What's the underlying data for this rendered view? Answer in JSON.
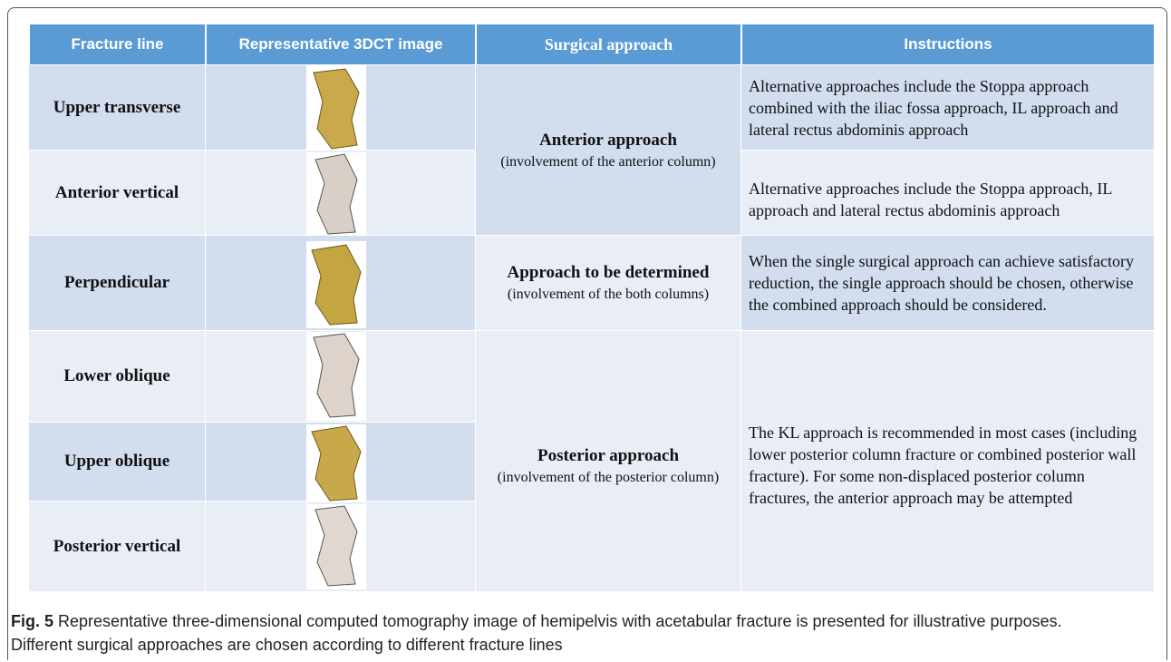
{
  "table": {
    "header": [
      "Fracture line",
      "Representative 3DCT image",
      "Surgical approach",
      "Instructions"
    ],
    "fracture_lines": [
      "Upper transverse",
      "Anterior vertical",
      "Perpendicular",
      "Lower oblique",
      "Upper oblique",
      "Posterior vertical"
    ],
    "approaches": [
      {
        "name": "Anterior approach",
        "detail": "(involvement of the anterior column)"
      },
      {
        "name": "Approach to be determined",
        "detail": "(involvement of the both columns)"
      },
      {
        "name": "Posterior approach",
        "detail": "(involvement of the posterior column)"
      }
    ],
    "instructions": [
      "Alternative approaches include the Stoppa approach combined with the iliac fossa approach, IL approach and lateral rectus abdominis approach",
      "Alternative approaches include the Stoppa approach, IL approach and lateral rectus abdominis approach",
      "When the single surgical approach can achieve satisfactory reduction, the single approach should be chosen, otherwise the combined approach should be considered.",
      "The KL approach is recommended in most cases (including lower posterior column fracture or combined posterior wall fracture). For some non-displaced posterior column fractures, the anterior approach may be attempted"
    ]
  },
  "caption": {
    "label": "Fig. 5",
    "text": "Representative three-dimensional computed tomography image of hemipelvis with acetabular fracture is presented for illustrative purposes. Different surgical approaches are chosen according to different fracture lines"
  }
}
